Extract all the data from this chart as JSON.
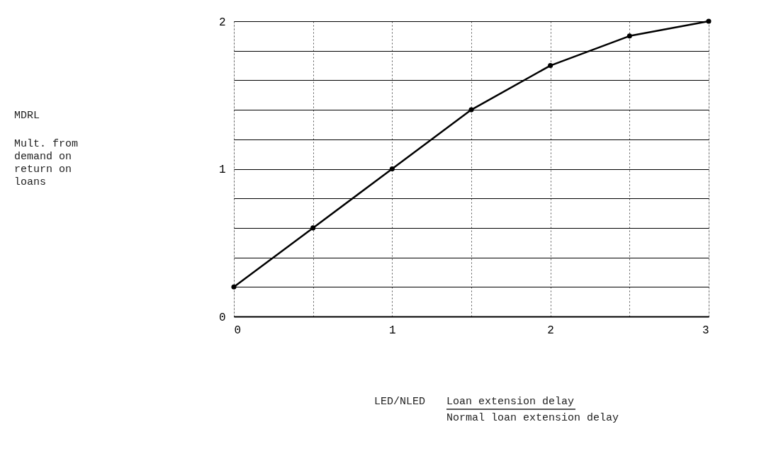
{
  "chart_data": {
    "type": "line",
    "annotations": [
      "MDRL",
      "Mult. from\ndemand on\nreturn on\nloans",
      "LED/NLED",
      "Loan extension delay",
      "Normal loan extension delay"
    ],
    "x": [
      0,
      0.5,
      1,
      1.5,
      2,
      2.5,
      3
    ],
    "series": [
      {
        "color": "#000000",
        "values": [
          0.2,
          0.6,
          1.0,
          1.4,
          1.7,
          1.9,
          2.0
        ]
      }
    ],
    "xlim": [
      0,
      3
    ],
    "ylim": [
      0,
      2
    ],
    "xticks": [
      0,
      {
        "value": 0.5,
        "label": null
      },
      1,
      {
        "value": 1.5,
        "label": null
      },
      2,
      {
        "value": 2.5,
        "label": null
      },
      3
    ],
    "yticks": [
      0,
      {
        "value": 0.2,
        "label": null
      },
      {
        "value": 0.4,
        "label": null
      },
      {
        "value": 0.6,
        "label": null
      },
      {
        "value": 0.8,
        "label": null
      },
      1,
      {
        "value": 1.2,
        "label": null
      },
      {
        "value": 1.4,
        "label": null
      },
      {
        "value": 1.6,
        "label": null
      },
      {
        "value": 1.8,
        "label": null
      },
      2
    ],
    "grid": true,
    "marker": "circle",
    "line_style": "solid"
  }
}
